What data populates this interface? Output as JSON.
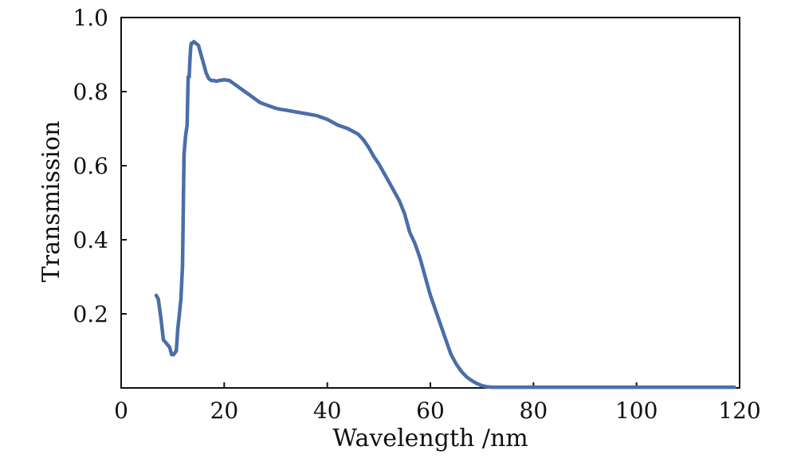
{
  "chart_data": {
    "type": "line",
    "title": "",
    "xlabel": "Wavelength /nm",
    "ylabel": "Transmission",
    "xlim": [
      0,
      120
    ],
    "ylim": [
      0,
      1.0
    ],
    "xticks": [
      {
        "value": 0,
        "label": "0"
      },
      {
        "value": 20,
        "label": "20"
      },
      {
        "value": 40,
        "label": "40"
      },
      {
        "value": 60,
        "label": "60"
      },
      {
        "value": 80,
        "label": "80"
      },
      {
        "value": 100,
        "label": "100"
      },
      {
        "value": 120,
        "label": "120"
      }
    ],
    "yticks": [
      {
        "value": 0.2,
        "label": "0.2"
      },
      {
        "value": 0.4,
        "label": "0.4"
      },
      {
        "value": 0.6,
        "label": "0.6"
      },
      {
        "value": 0.8,
        "label": "0.8"
      },
      {
        "value": 1.0,
        "label": "1.0"
      }
    ],
    "grid": false,
    "series": [
      {
        "name": "Transmission",
        "color": "#4a6ea8",
        "x": [
          6.8,
          7.2,
          7.7,
          8.2,
          8.8,
          9.4,
          9.8,
          10.2,
          10.7,
          11.0,
          11.3,
          11.6,
          11.9,
          12.2,
          12.5,
          12.8,
          13.0,
          13.2,
          13.3,
          13.4,
          13.5,
          13.6,
          13.8,
          14.1,
          14.5,
          15.0,
          15.5,
          16.0,
          16.5,
          17.0,
          17.5,
          18.0,
          18.5,
          19.0,
          20.0,
          21.0,
          22.0,
          23.0,
          24.0,
          25.0,
          26.0,
          27.0,
          28.0,
          29.0,
          30.0,
          31.0,
          32.0,
          34.0,
          36.0,
          38.0,
          40.0,
          42.0,
          44.0,
          46.0,
          47.0,
          48.0,
          49.0,
          50.0,
          51.0,
          52.0,
          53.0,
          54.0,
          55.0,
          56.0,
          57.0,
          58.0,
          59.0,
          60.0,
          61.0,
          62.0,
          63.0,
          64.0,
          65.0,
          66.0,
          67.0,
          68.0,
          69.0,
          70.0,
          71.0,
          72.0,
          73.0,
          74.0,
          76.0,
          78.0,
          80.0,
          90.0,
          100.0,
          110.0,
          119.0
        ],
        "y": [
          0.25,
          0.24,
          0.19,
          0.13,
          0.12,
          0.11,
          0.09,
          0.09,
          0.1,
          0.16,
          0.2,
          0.24,
          0.33,
          0.63,
          0.68,
          0.71,
          0.84,
          0.84,
          0.87,
          0.9,
          0.92,
          0.93,
          0.93,
          0.935,
          0.93,
          0.925,
          0.9,
          0.875,
          0.85,
          0.835,
          0.83,
          0.83,
          0.828,
          0.83,
          0.832,
          0.83,
          0.82,
          0.81,
          0.8,
          0.79,
          0.78,
          0.77,
          0.765,
          0.76,
          0.755,
          0.752,
          0.75,
          0.745,
          0.74,
          0.735,
          0.725,
          0.71,
          0.7,
          0.685,
          0.67,
          0.65,
          0.625,
          0.605,
          0.58,
          0.555,
          0.53,
          0.505,
          0.47,
          0.42,
          0.39,
          0.35,
          0.3,
          0.25,
          0.21,
          0.17,
          0.13,
          0.09,
          0.065,
          0.045,
          0.03,
          0.02,
          0.012,
          0.006,
          0.003,
          0.002,
          0.002,
          0.002,
          0.002,
          0.002,
          0.002,
          0.002,
          0.002,
          0.002,
          0.002
        ]
      }
    ]
  }
}
